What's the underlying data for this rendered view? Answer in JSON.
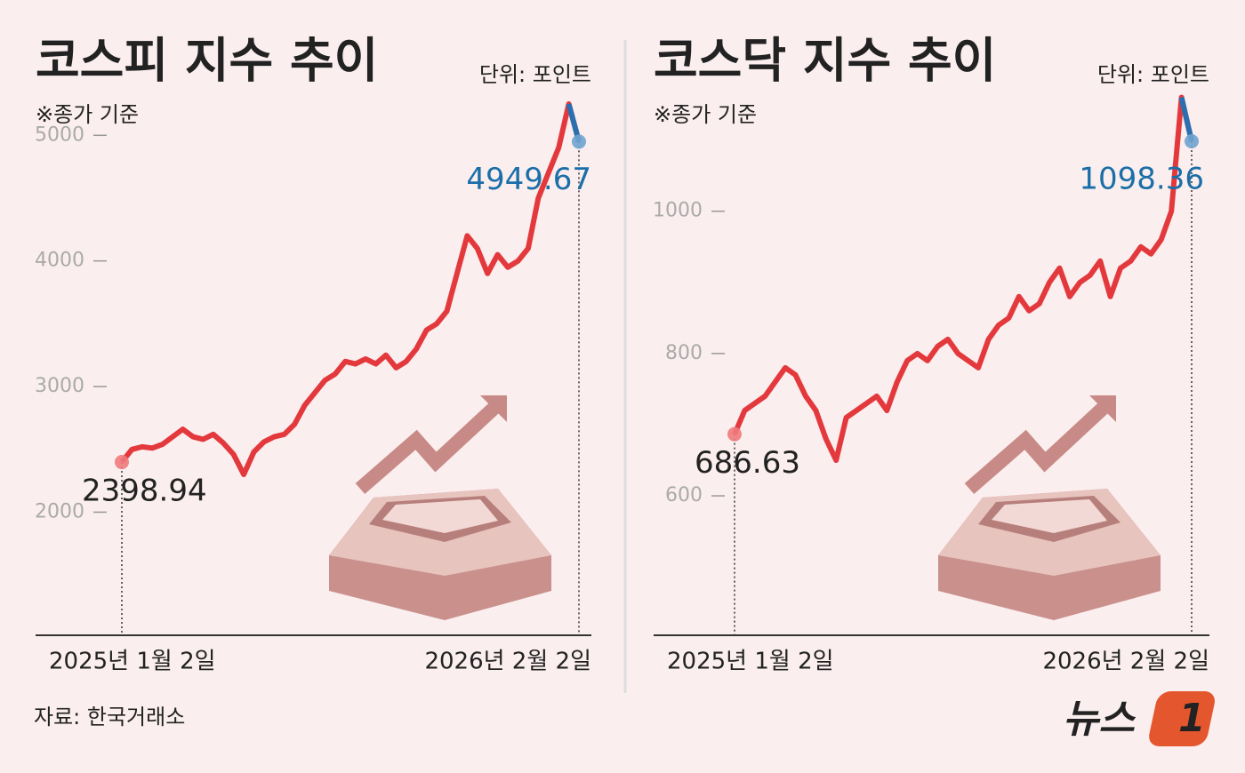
{
  "chart_data": [
    {
      "type": "line",
      "title": "코스피 지수 추이",
      "unit": "단위: 포인트",
      "note": "※종가 기준",
      "categories": [
        "2025년 1월 2일",
        null,
        null,
        null,
        null,
        null,
        null,
        null,
        null,
        null,
        null,
        null,
        null,
        null,
        null,
        null,
        null,
        null,
        null,
        null,
        null,
        null,
        null,
        null,
        null,
        null,
        null,
        null,
        null,
        null,
        null,
        null,
        null,
        null,
        null,
        null,
        null,
        null,
        null,
        null,
        null,
        null,
        null,
        null,
        null,
        "2026년 2월 2일"
      ],
      "values": [
        2398.94,
        2500,
        2520,
        2510,
        2540,
        2600,
        2660,
        2600,
        2580,
        2620,
        2550,
        2460,
        2300,
        2480,
        2560,
        2600,
        2620,
        2700,
        2850,
        2950,
        3050,
        3100,
        3200,
        3180,
        3220,
        3180,
        3250,
        3150,
        3200,
        3300,
        3450,
        3500,
        3600,
        3900,
        4200,
        4100,
        3900,
        4050,
        3950,
        4000,
        4100,
        4500,
        4700,
        4900,
        5250,
        4949.67
      ],
      "color": "#e3393d",
      "end_color": "#2a6fb0",
      "ylim": [
        1020,
        5370
      ],
      "yticks": [
        2000,
        3000,
        4000,
        5000
      ]
    },
    {
      "type": "line",
      "title": "코스닥 지수 추이",
      "unit": "단위: 포인트",
      "note": "※종가 기준",
      "categories": [
        "2025년 1월 2일",
        null,
        null,
        null,
        null,
        null,
        null,
        null,
        null,
        null,
        null,
        null,
        null,
        null,
        null,
        null,
        null,
        null,
        null,
        null,
        null,
        null,
        null,
        null,
        null,
        null,
        null,
        null,
        null,
        null,
        null,
        null,
        null,
        null,
        null,
        null,
        null,
        null,
        null,
        null,
        null,
        null,
        null,
        null,
        null,
        "2026년 2월 2일"
      ],
      "values": [
        686.63,
        720,
        730,
        740,
        760,
        780,
        770,
        740,
        720,
        680,
        650,
        710,
        720,
        730,
        740,
        720,
        760,
        790,
        800,
        790,
        810,
        820,
        800,
        790,
        780,
        820,
        840,
        850,
        880,
        860,
        870,
        900,
        920,
        880,
        900,
        910,
        930,
        880,
        920,
        930,
        950,
        940,
        960,
        1000,
        1160,
        1098.36
      ],
      "color": "#e3393d",
      "end_color": "#2a6fb0",
      "ylim": [
        404,
        1172
      ],
      "yticks": [
        600,
        800,
        1000
      ]
    }
  ],
  "source": "자료: 한국거래소",
  "logo": {
    "text": "뉴스",
    "mark": "1"
  }
}
